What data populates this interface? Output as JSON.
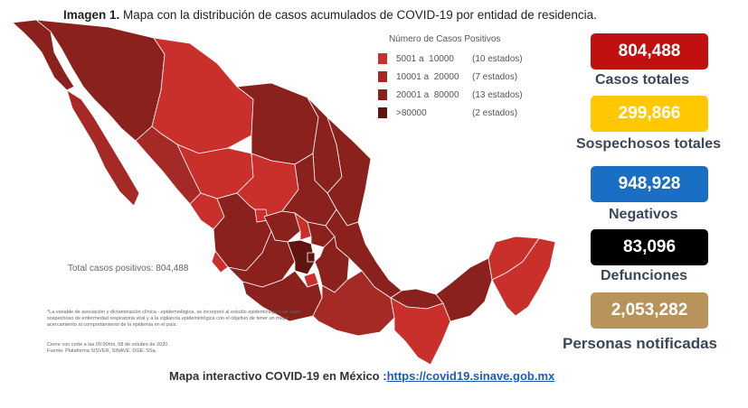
{
  "caption": {
    "prefix": "Imagen 1.",
    "text": "Mapa con la distribución de casos acumulados de COVID-19 por entidad de residencia."
  },
  "legend": {
    "title": "Número de Casos Positivos",
    "items": [
      {
        "range": "5001 a  10000",
        "count": "(10 estados)",
        "color": "#c9302c"
      },
      {
        "range": "10001 a  20000",
        "count": "(7 estados)",
        "color": "#a52a25"
      },
      {
        "range": "20001 a  80000",
        "count": "(13 estados)",
        "color": "#8b211d"
      },
      {
        "range": ">80000",
        "count": "(2 estados)",
        "color": "#5e1512"
      }
    ]
  },
  "map": {
    "total_label": "Total casos positivos: 804,488",
    "footnote": "*La variable de asociación y dictaminación clínica - epidemiológica, se incorporó al estudio epidemiológico de caso sospechoso de enfermedad respiratoria viral y a la vigilancia epidemiológica con el objetivo de tener un mejor acercamiento al comportamiento de la epidemia en el país.",
    "cutoff": "Cierre con corte a las 09:00hrs, 08 de octubre de 2020",
    "source": "Fuente: Plataforma SISVER, SINAVE, DGE, SSa."
  },
  "stats": [
    {
      "value": "804,488",
      "label": "Casos totales",
      "color": "#c0100f"
    },
    {
      "value": "299,866",
      "label": "Sospechosos totales",
      "color": "#ffc800"
    },
    {
      "value": "948,928",
      "label": "Negativos",
      "color": "#1a6fc4"
    },
    {
      "value": "83,096",
      "label": "Defunciones",
      "color": "#000000"
    },
    {
      "value": "2,053,282",
      "label": "Personas notificadas",
      "color": "#b8935a"
    }
  ],
  "footer": {
    "text": "Mapa interactivo COVID-19 en México :",
    "link": "https://covid19.sinave.gob.mx"
  }
}
